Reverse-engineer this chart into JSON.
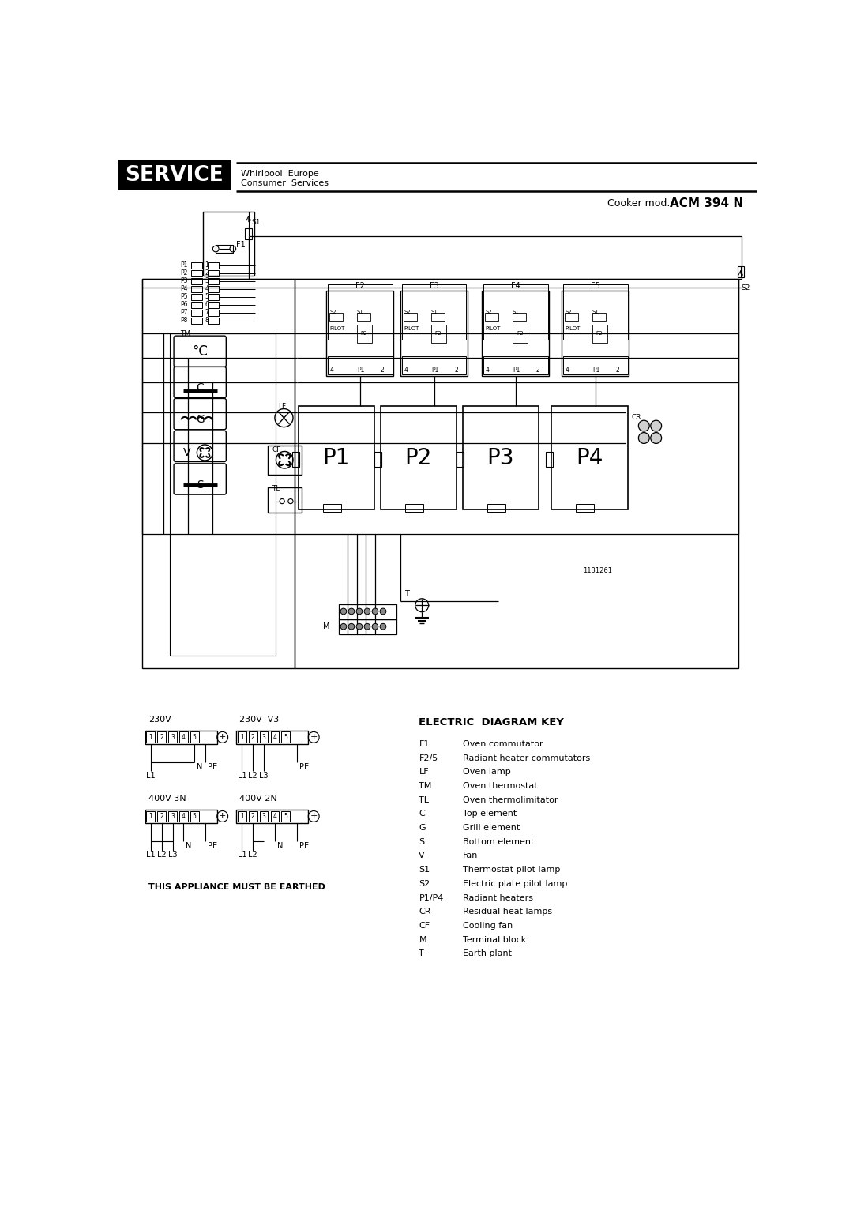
{
  "title_service": "SERVICE",
  "title_whirlpool": "Whirlpool  Europe",
  "title_consumer": "Consumer  Services",
  "diagram_key_title": "ELECTRIC  DIAGRAM KEY",
  "key_items": [
    [
      "F1",
      "Oven commutator"
    ],
    [
      "F2/5",
      "Radiant heater commutators"
    ],
    [
      "LF",
      "Oven lamp"
    ],
    [
      "TM",
      "Oven thermostat"
    ],
    [
      "TL",
      "Oven thermolimitator"
    ],
    [
      "C",
      "Top element"
    ],
    [
      "G",
      "Grill element"
    ],
    [
      "S",
      "Bottom element"
    ],
    [
      "V",
      "Fan"
    ],
    [
      "S1",
      "Thermostat pilot lamp"
    ],
    [
      "S2",
      "Electric plate pilot lamp"
    ],
    [
      "P1/P4",
      "Radiant heaters"
    ],
    [
      "CR",
      "Residual heat lamps"
    ],
    [
      "CF",
      "Cooling fan"
    ],
    [
      "M",
      "Terminal block"
    ],
    [
      "T",
      "Earth plant"
    ]
  ],
  "earthed_text": "THIS APPLIANCE MUST BE EARTHED",
  "diagram_number": "1131261",
  "bg_color": "#ffffff"
}
